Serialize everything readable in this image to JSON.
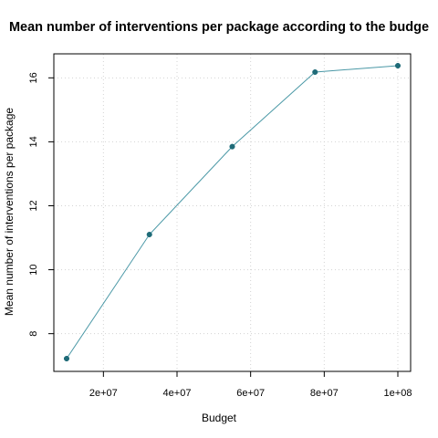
{
  "chart_data": {
    "type": "line",
    "title": "Mean number of interventions per package according to the budge",
    "xlabel": "Budget",
    "ylabel": "Mean number of interventions per package",
    "x": [
      10000000,
      32500000,
      55000000,
      77500000,
      100000000
    ],
    "series": [
      {
        "values": [
          7.22,
          11.1,
          13.85,
          16.18,
          16.38
        ]
      }
    ],
    "xlim": [
      10000000,
      100000000
    ],
    "ylim": [
      7.22,
      16.38
    ],
    "xticks": [
      20000000,
      40000000,
      60000000,
      80000000,
      100000000
    ],
    "xtick_labels": [
      "2e+07",
      "4e+07",
      "6e+07",
      "8e+07",
      "1e+08"
    ],
    "yticks": [
      8,
      10,
      12,
      14,
      16
    ],
    "ytick_labels": [
      "8",
      "10",
      "12",
      "14",
      "16"
    ],
    "grid": true,
    "colors": {
      "line": "#4a98a6",
      "point": "#1f6b78",
      "grid": "#d3d3d3"
    }
  }
}
